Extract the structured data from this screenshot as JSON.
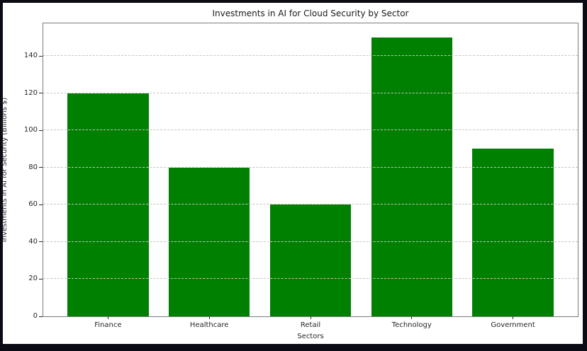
{
  "chart_data": {
    "type": "bar",
    "title": "Investments in AI for Cloud Security by Sector",
    "xlabel": "Sectors",
    "ylabel": "Investments in AI for Security (Billions $)",
    "categories": [
      "Finance",
      "Healthcare",
      "Retail",
      "Technology",
      "Government"
    ],
    "values": [
      120,
      80,
      60,
      150,
      90
    ],
    "yticks": [
      0,
      20,
      40,
      60,
      80,
      100,
      120,
      140
    ],
    "ylim": [
      0,
      157.5
    ],
    "bar_width": 0.8,
    "bar_color": "#008000",
    "grid": "horizontal-dashed",
    "grid_color": "#c4c4c4",
    "grid_above_bars": true,
    "legend": null,
    "figure_background": "#ffffff",
    "frame_color": "#0b0b13",
    "spine_color": "#7a7a7a"
  }
}
